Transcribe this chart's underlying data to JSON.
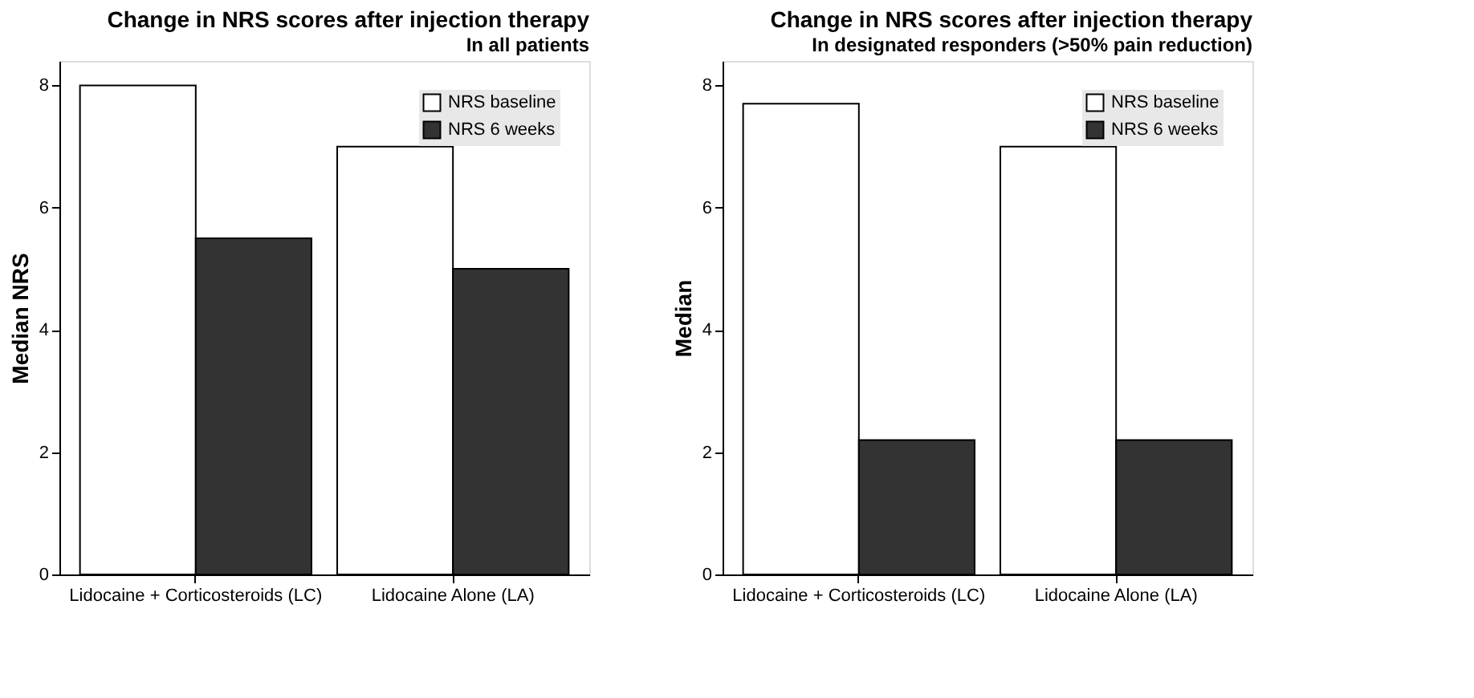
{
  "chart_data": [
    {
      "type": "bar",
      "title": "Change in NRS scores after injection therapy",
      "subtitle": "In all patients",
      "ylabel": "Median NRS",
      "categories": [
        "Lidocaine + Corticosteroids (LC)",
        "Lidocaine Alone (LA)"
      ],
      "series": [
        {
          "name": "NRS baseline",
          "color": "#ffffff",
          "values": [
            8,
            7
          ]
        },
        {
          "name": "NRS 6 weeks",
          "color": "#333333",
          "values": [
            5.5,
            5
          ]
        }
      ],
      "ylim": [
        0,
        8.4
      ],
      "yticks": [
        0,
        2,
        4,
        6,
        8
      ],
      "legend": "top right",
      "grid": false
    },
    {
      "type": "bar",
      "title": "Change in NRS scores after injection therapy",
      "subtitle": "In designated responders (>50% pain reduction)",
      "ylabel": "Median",
      "categories": [
        "Lidocaine + Corticosteroids (LC)",
        "Lidocaine Alone (LA)"
      ],
      "series": [
        {
          "name": "NRS baseline",
          "color": "#ffffff",
          "values": [
            7.7,
            7
          ]
        },
        {
          "name": "NRS 6 weeks",
          "color": "#333333",
          "values": [
            2.2,
            2.2
          ]
        }
      ],
      "ylim": [
        0,
        8.4
      ],
      "yticks": [
        0,
        2,
        4,
        6,
        8
      ],
      "legend": "top right",
      "grid": false
    }
  ]
}
